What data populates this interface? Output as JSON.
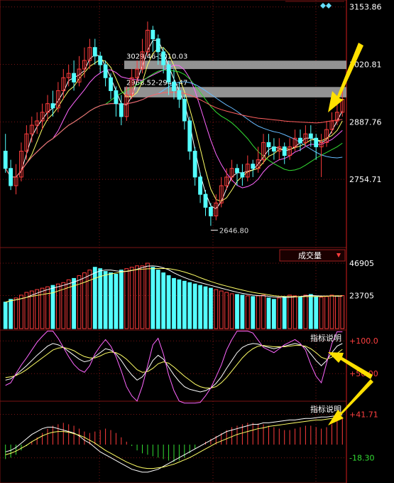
{
  "chart_data": [
    {
      "type": "candlestick",
      "panel": "price",
      "right_axis_labels": [
        "3153.86",
        "3020.81",
        "2887.76",
        "2754.71"
      ],
      "price_ticks": [
        3153.86,
        3020.81,
        2887.76,
        2754.71
      ],
      "ylim": [
        2610,
        3160
      ],
      "annotations": [
        {
          "text": "3029.46-3010.03",
          "low": 3010.03,
          "high": 3029.46
        },
        {
          "text": "2968.52-2944.47",
          "low": 2944.47,
          "high": 2968.52
        }
      ],
      "low_marker": {
        "text": "2646.80",
        "value": 2646.8
      },
      "candles": [
        [
          2820,
          2780,
          2860,
          2770
        ],
        [
          2780,
          2740,
          2800,
          2730
        ],
        [
          2740,
          2760,
          2790,
          2720
        ],
        [
          2760,
          2820,
          2840,
          2750
        ],
        [
          2820,
          2860,
          2880,
          2800
        ],
        [
          2860,
          2880,
          2900,
          2840
        ],
        [
          2880,
          2890,
          2910,
          2860
        ],
        [
          2890,
          2910,
          2930,
          2870
        ],
        [
          2910,
          2930,
          2950,
          2890
        ],
        [
          2930,
          2920,
          2960,
          2900
        ],
        [
          2920,
          2960,
          2980,
          2910
        ],
        [
          2960,
          2990,
          3010,
          2940
        ],
        [
          2990,
          3000,
          3020,
          2970
        ],
        [
          3000,
          2980,
          3030,
          2960
        ],
        [
          2980,
          3010,
          3040,
          2970
        ],
        [
          3010,
          3030,
          3060,
          2990
        ],
        [
          3030,
          3060,
          3080,
          3010
        ],
        [
          3060,
          3040,
          3080,
          3020
        ],
        [
          3040,
          3020,
          3050,
          3000
        ],
        [
          3020,
          2990,
          3030,
          2970
        ],
        [
          2990,
          2960,
          3000,
          2940
        ],
        [
          2960,
          2930,
          2970,
          2900
        ],
        [
          2930,
          2900,
          2950,
          2880
        ],
        [
          2900,
          2950,
          2970,
          2890
        ],
        [
          2950,
          2990,
          3010,
          2940
        ],
        [
          2990,
          3010,
          3030,
          2980
        ],
        [
          3010,
          3050,
          3080,
          3000
        ],
        [
          3050,
          3100,
          3120,
          3040
        ],
        [
          3100,
          3080,
          3110,
          3050
        ],
        [
          3080,
          3050,
          3090,
          3020
        ],
        [
          3050,
          3020,
          3060,
          3000
        ],
        [
          3020,
          2980,
          3030,
          2950
        ],
        [
          2980,
          2960,
          3010,
          2940
        ],
        [
          2960,
          2940,
          2980,
          2920
        ],
        [
          2940,
          2890,
          2950,
          2870
        ],
        [
          2890,
          2820,
          2900,
          2800
        ],
        [
          2820,
          2760,
          2830,
          2740
        ],
        [
          2760,
          2720,
          2770,
          2700
        ],
        [
          2720,
          2690,
          2730,
          2670
        ],
        [
          2690,
          2670,
          2700,
          2647
        ],
        [
          2670,
          2700,
          2720,
          2660
        ],
        [
          2700,
          2740,
          2760,
          2690
        ],
        [
          2740,
          2760,
          2780,
          2730
        ],
        [
          2760,
          2780,
          2800,
          2750
        ],
        [
          2780,
          2770,
          2790,
          2740
        ],
        [
          2770,
          2760,
          2790,
          2740
        ],
        [
          2760,
          2790,
          2810,
          2750
        ],
        [
          2790,
          2780,
          2800,
          2760
        ],
        [
          2780,
          2800,
          2830,
          2770
        ],
        [
          2800,
          2840,
          2860,
          2790
        ],
        [
          2840,
          2830,
          2860,
          2810
        ],
        [
          2830,
          2820,
          2850,
          2800
        ],
        [
          2820,
          2830,
          2850,
          2800
        ],
        [
          2830,
          2810,
          2840,
          2790
        ],
        [
          2810,
          2830,
          2850,
          2800
        ],
        [
          2830,
          2850,
          2870,
          2820
        ],
        [
          2850,
          2840,
          2870,
          2820
        ],
        [
          2840,
          2860,
          2880,
          2830
        ],
        [
          2860,
          2850,
          2880,
          2830
        ],
        [
          2850,
          2830,
          2860,
          2800
        ],
        [
          2830,
          2840,
          2860,
          2760
        ],
        [
          2840,
          2870,
          2890,
          2830
        ],
        [
          2870,
          2890,
          2910,
          2860
        ],
        [
          2890,
          2910,
          2930,
          2880
        ],
        [
          2910,
          2940,
          2960,
          2900
        ]
      ],
      "volume_axis_labels": [
        "46905",
        "23705"
      ],
      "volume_ticks": [
        46905,
        23705
      ],
      "volume_panel_label": "成交量",
      "volume_values": [
        19000,
        21000,
        22000,
        24000,
        26000,
        27000,
        28000,
        29000,
        30000,
        31000,
        32000,
        33000,
        35000,
        36000,
        38000,
        40000,
        42000,
        44000,
        43000,
        41000,
        40000,
        39000,
        42000,
        43000,
        44000,
        45000,
        45000,
        46905,
        44000,
        42000,
        40000,
        38000,
        36000,
        35000,
        34000,
        33000,
        32000,
        31000,
        30000,
        29000,
        28000,
        27000,
        26000,
        25000,
        24500,
        24000,
        23500,
        23000,
        23500,
        24000,
        22000,
        21000,
        22000,
        23000,
        24000,
        23500,
        23000,
        24000,
        24500,
        23000,
        22500,
        23000,
        24000,
        23500,
        23705
      ],
      "osc1_axis_labels": [
        "+100.0",
        "+50.00"
      ],
      "osc1_ticks": [
        100,
        50
      ],
      "osc1_panel_label": "指标说明",
      "osc1_k": [
        40,
        42,
        48,
        55,
        62,
        70,
        78,
        85,
        92,
        96,
        94,
        90,
        84,
        78,
        72,
        68,
        70,
        76,
        82,
        88,
        86,
        80,
        70,
        58,
        48,
        40,
        45,
        56,
        70,
        78,
        72,
        60,
        48,
        38,
        30,
        26,
        24,
        22,
        24,
        28,
        35,
        45,
        58,
        70,
        82,
        90,
        94,
        96,
        95,
        92,
        90,
        88,
        90,
        92,
        94,
        96,
        94,
        90,
        80,
        70,
        62,
        70,
        82,
        92,
        96
      ],
      "osc1_d": [
        44,
        45,
        47,
        51,
        56,
        62,
        68,
        74,
        80,
        86,
        89,
        90,
        88,
        85,
        80,
        76,
        74,
        74,
        77,
        81,
        83,
        82,
        78,
        72,
        64,
        56,
        52,
        53,
        58,
        65,
        68,
        66,
        60,
        53,
        46,
        40,
        34,
        30,
        28,
        28,
        30,
        36,
        44,
        54,
        64,
        74,
        82,
        88,
        92,
        93,
        92,
        91,
        91,
        91,
        92,
        93,
        93,
        92,
        88,
        82,
        75,
        72,
        75,
        81,
        87
      ],
      "osc2_axis_labels": [
        "+41.71",
        "-18.30"
      ],
      "osc2_ticks": [
        41.71,
        -18.3
      ],
      "osc2_panel_label": "指标说明",
      "osc2_hist": [
        -20,
        -18,
        -14,
        -8,
        -2,
        4,
        10,
        16,
        22,
        26,
        28,
        30,
        28,
        26,
        22,
        18,
        16,
        18,
        20,
        22,
        20,
        16,
        10,
        4,
        -2,
        -8,
        -12,
        -14,
        -16,
        -18,
        -20,
        -22,
        -24,
        -22,
        -18,
        -12,
        -6,
        0,
        4,
        8,
        12,
        16,
        20,
        24,
        26,
        28,
        30,
        30,
        29,
        28,
        26,
        24,
        22,
        20,
        20,
        22,
        24,
        26,
        26,
        24,
        22,
        24,
        28,
        32,
        36
      ],
      "osc2_dif": [
        -10,
        -8,
        -4,
        2,
        8,
        14,
        18,
        22,
        24,
        24,
        22,
        20,
        18,
        16,
        12,
        6,
        2,
        -4,
        -10,
        -14,
        -18,
        -22,
        -26,
        -30,
        -34,
        -36,
        -38,
        -38,
        -36,
        -34,
        -30,
        -26,
        -22,
        -18,
        -14,
        -10,
        -6,
        -2,
        2,
        6,
        10,
        14,
        18,
        20,
        22,
        24,
        26,
        28,
        28,
        30,
        30,
        31,
        32,
        33,
        34,
        34,
        35,
        36,
        36,
        37,
        38,
        38,
        39,
        40,
        41
      ],
      "osc2_dea": [
        -14,
        -12,
        -9,
        -5,
        -1,
        4,
        8,
        12,
        15,
        17,
        18,
        18,
        17,
        15,
        13,
        10,
        6,
        2,
        -3,
        -8,
        -12,
        -16,
        -20,
        -24,
        -27,
        -30,
        -32,
        -33,
        -33,
        -32,
        -31,
        -29,
        -27,
        -24,
        -21,
        -18,
        -14,
        -10,
        -6,
        -2,
        2,
        5,
        8,
        11,
        14,
        16,
        18,
        20,
        22,
        23,
        25,
        26,
        27,
        28,
        29,
        30,
        31,
        32,
        33,
        34,
        34,
        35,
        36,
        37,
        38
      ]
    }
  ],
  "colors": {
    "background": "#000000",
    "grid": "#7a1414",
    "up": "#ff3c3c",
    "down": "#54ffff",
    "label": "#ffffff",
    "accent_arrow": "#ffe000",
    "band": "#9a9a9a",
    "ma_white": "#ffffff",
    "ma_yellow": "#ffff66",
    "ma_magenta": "#ff66ff",
    "ma_green": "#33dd33",
    "ma_cyan": "#66bbff",
    "ma_red": "#ff6060"
  },
  "icons": {
    "dropdown": "triangle-down-icon",
    "arrow": "yellow-arrow-icon",
    "diamonds": "diamond-icon"
  }
}
